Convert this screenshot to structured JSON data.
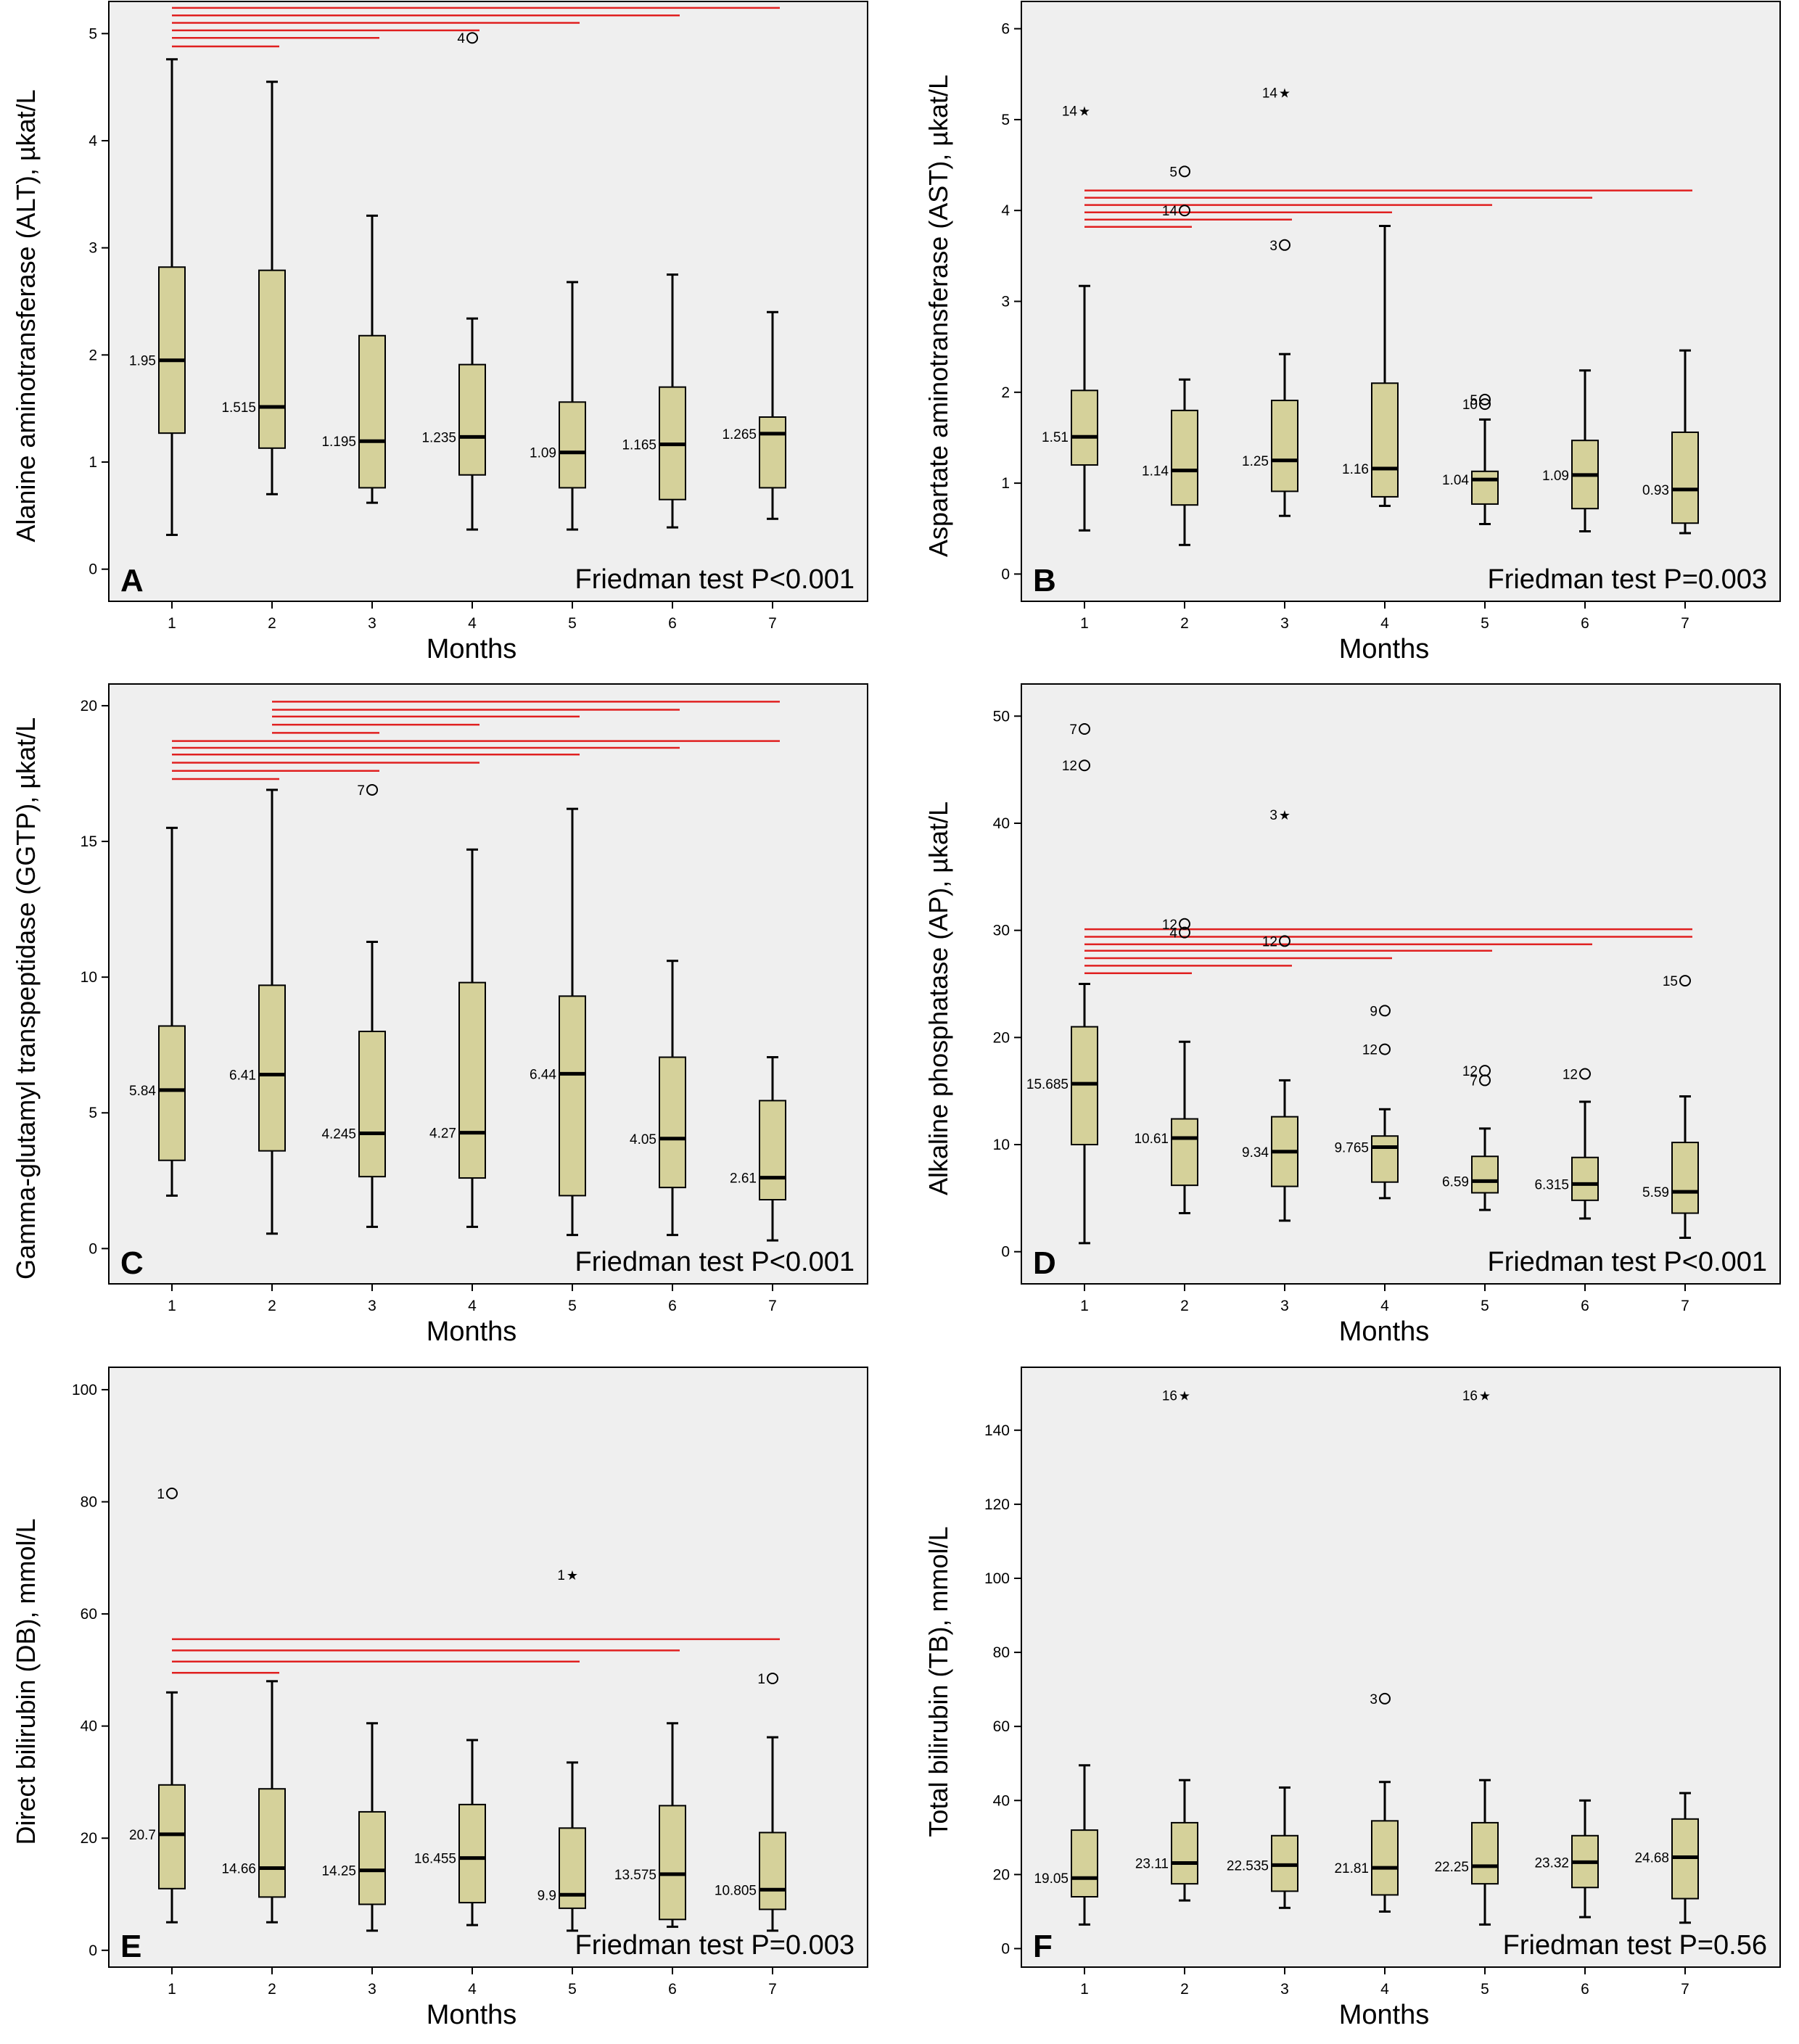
{
  "colors": {
    "plot_bg": "#efefef",
    "box_fill": "#d5d19a",
    "box_stroke": "#000000",
    "significance_line": "#e02020"
  },
  "chart_data": [
    {
      "panel": "A",
      "type": "boxplot",
      "ylabel": "Alanine aminotransferase (ALT), µkat/L",
      "xlabel": "Months",
      "test_text": "Friedman test P<0.001",
      "categories": [
        "1",
        "2",
        "3",
        "4",
        "5",
        "6",
        "7"
      ],
      "ylim": [
        -0.3,
        5.3
      ],
      "yticks": [
        0,
        1,
        2,
        3,
        4,
        5
      ],
      "boxes": [
        {
          "min": 0.32,
          "q1": 1.27,
          "median": 1.95,
          "q3": 2.82,
          "max": 4.76,
          "label": "1.95"
        },
        {
          "min": 0.7,
          "q1": 1.13,
          "median": 1.515,
          "q3": 2.79,
          "max": 4.55,
          "label": "1.515"
        },
        {
          "min": 0.62,
          "q1": 0.76,
          "median": 1.195,
          "q3": 2.18,
          "max": 3.3,
          "label": "1.195"
        },
        {
          "min": 0.37,
          "q1": 0.88,
          "median": 1.235,
          "q3": 1.91,
          "max": 2.34,
          "label": "1.235"
        },
        {
          "min": 0.37,
          "q1": 0.76,
          "median": 1.09,
          "q3": 1.56,
          "max": 2.68,
          "label": "1.09"
        },
        {
          "min": 0.39,
          "q1": 0.65,
          "median": 1.165,
          "q3": 1.7,
          "max": 2.75,
          "label": "1.165"
        },
        {
          "min": 0.47,
          "q1": 0.76,
          "median": 1.265,
          "q3": 1.42,
          "max": 2.4,
          "label": "1.265"
        }
      ],
      "outliers": [
        {
          "x": 4,
          "y": 4.96,
          "label": "4",
          "marker": "circle"
        }
      ],
      "sig_lines": [
        {
          "from": 1,
          "to": 2,
          "y": 4.88
        },
        {
          "from": 1,
          "to": 3,
          "y": 4.96
        },
        {
          "from": 1,
          "to": 4,
          "y": 5.03
        },
        {
          "from": 1,
          "to": 5,
          "y": 5.1
        },
        {
          "from": 1,
          "to": 6,
          "y": 5.17
        },
        {
          "from": 1,
          "to": 7,
          "y": 5.24
        }
      ]
    },
    {
      "panel": "B",
      "type": "boxplot",
      "ylabel": "Aspartate aminotransferase (AST), µkat/L",
      "xlabel": "Months",
      "test_text": "Friedman test P=0.003",
      "categories": [
        "1",
        "2",
        "3",
        "4",
        "5",
        "6",
        "7"
      ],
      "ylim": [
        -0.3,
        6.3
      ],
      "yticks": [
        0,
        1,
        2,
        3,
        4,
        5,
        6
      ],
      "boxes": [
        {
          "min": 0.48,
          "q1": 1.2,
          "median": 1.51,
          "q3": 2.02,
          "max": 3.17,
          "label": "1.51"
        },
        {
          "min": 0.32,
          "q1": 0.76,
          "median": 1.14,
          "q3": 1.8,
          "max": 2.14,
          "label": "1.14"
        },
        {
          "min": 0.64,
          "q1": 0.91,
          "median": 1.25,
          "q3": 1.91,
          "max": 2.42,
          "label": "1.25"
        },
        {
          "min": 0.75,
          "q1": 0.85,
          "median": 1.16,
          "q3": 2.1,
          "max": 3.83,
          "label": "1.16"
        },
        {
          "min": 0.55,
          "q1": 0.77,
          "median": 1.04,
          "q3": 1.13,
          "max": 1.7,
          "label": "1.04"
        },
        {
          "min": 0.47,
          "q1": 0.72,
          "median": 1.09,
          "q3": 1.47,
          "max": 2.24,
          "label": "1.09"
        },
        {
          "min": 0.45,
          "q1": 0.56,
          "median": 0.93,
          "q3": 1.56,
          "max": 2.46,
          "label": "0.93"
        }
      ],
      "outliers": [
        {
          "x": 1,
          "y": 5.1,
          "label": "14",
          "marker": "star"
        },
        {
          "x": 2,
          "y": 4.43,
          "label": "5",
          "marker": "circle"
        },
        {
          "x": 2,
          "y": 4.0,
          "label": "14",
          "marker": "circle"
        },
        {
          "x": 3,
          "y": 5.3,
          "label": "14",
          "marker": "star"
        },
        {
          "x": 3,
          "y": 3.62,
          "label": "3",
          "marker": "circle"
        },
        {
          "x": 5,
          "y": 1.92,
          "label": "5",
          "marker": "circle"
        },
        {
          "x": 5,
          "y": 1.87,
          "label": "10",
          "marker": "circle"
        }
      ],
      "sig_lines": [
        {
          "from": 1,
          "to": 2,
          "y": 3.82
        },
        {
          "from": 1,
          "to": 3,
          "y": 3.9
        },
        {
          "from": 1,
          "to": 4,
          "y": 3.98
        },
        {
          "from": 1,
          "to": 5,
          "y": 4.06
        },
        {
          "from": 1,
          "to": 6,
          "y": 4.14
        },
        {
          "from": 1,
          "to": 7,
          "y": 4.22
        }
      ]
    },
    {
      "panel": "C",
      "type": "boxplot",
      "ylabel": "Gamma-glutamyl transpeptidase (GGTP), µkat/L",
      "xlabel": "Months",
      "test_text": "Friedman test P<0.001",
      "categories": [
        "1",
        "2",
        "3",
        "4",
        "5",
        "6",
        "7"
      ],
      "ylim": [
        -1.3,
        20.8
      ],
      "yticks": [
        0,
        5,
        10,
        15,
        20
      ],
      "boxes": [
        {
          "min": 1.95,
          "q1": 3.25,
          "median": 5.84,
          "q3": 8.2,
          "max": 15.5,
          "label": "5.84"
        },
        {
          "min": 0.55,
          "q1": 3.6,
          "median": 6.41,
          "q3": 9.7,
          "max": 16.9,
          "label": "6.41"
        },
        {
          "min": 0.8,
          "q1": 2.65,
          "median": 4.245,
          "q3": 8.0,
          "max": 11.3,
          "label": "4.245"
        },
        {
          "min": 0.8,
          "q1": 2.6,
          "median": 4.27,
          "q3": 9.8,
          "max": 14.7,
          "label": "4.27"
        },
        {
          "min": 0.5,
          "q1": 1.95,
          "median": 6.44,
          "q3": 9.3,
          "max": 16.2,
          "label": "6.44"
        },
        {
          "min": 0.5,
          "q1": 2.25,
          "median": 4.05,
          "q3": 7.05,
          "max": 10.6,
          "label": "4.05"
        },
        {
          "min": 0.3,
          "q1": 1.8,
          "median": 2.61,
          "q3": 5.45,
          "max": 7.05,
          "label": "2.61"
        }
      ],
      "outliers": [
        {
          "x": 3,
          "y": 16.9,
          "label": "7",
          "marker": "circle"
        }
      ],
      "sig_lines": [
        {
          "from": 1,
          "to": 2,
          "y": 17.3
        },
        {
          "from": 1,
          "to": 3,
          "y": 17.6
        },
        {
          "from": 1,
          "to": 4,
          "y": 17.9
        },
        {
          "from": 1,
          "to": 5,
          "y": 18.2
        },
        {
          "from": 1,
          "to": 6,
          "y": 18.45
        },
        {
          "from": 1,
          "to": 7,
          "y": 18.7
        },
        {
          "from": 2,
          "to": 3,
          "y": 19.0
        },
        {
          "from": 2,
          "to": 4,
          "y": 19.3
        },
        {
          "from": 2,
          "to": 5,
          "y": 19.6
        },
        {
          "from": 2,
          "to": 6,
          "y": 19.85
        },
        {
          "from": 2,
          "to": 7,
          "y": 20.15
        }
      ]
    },
    {
      "panel": "D",
      "type": "boxplot",
      "ylabel": "Alkaline phosphatase (AP), µkat/L",
      "xlabel": "Months",
      "test_text": "Friedman test P<0.001",
      "categories": [
        "1",
        "2",
        "3",
        "4",
        "5",
        "6",
        "7"
      ],
      "ylim": [
        -3,
        53
      ],
      "yticks": [
        0,
        10,
        20,
        30,
        40,
        50
      ],
      "boxes": [
        {
          "min": 0.8,
          "q1": 10.0,
          "median": 15.685,
          "q3": 21.0,
          "max": 25.0,
          "label": "15.685"
        },
        {
          "min": 3.6,
          "q1": 6.2,
          "median": 10.61,
          "q3": 12.4,
          "max": 19.6,
          "label": "10.61"
        },
        {
          "min": 2.9,
          "q1": 6.1,
          "median": 9.34,
          "q3": 12.6,
          "max": 16.0,
          "label": "9.34"
        },
        {
          "min": 5.0,
          "q1": 6.5,
          "median": 9.765,
          "q3": 10.8,
          "max": 13.3,
          "label": "9.765"
        },
        {
          "min": 3.9,
          "q1": 5.5,
          "median": 6.59,
          "q3": 8.9,
          "max": 11.5,
          "label": "6.59"
        },
        {
          "min": 3.1,
          "q1": 4.8,
          "median": 6.315,
          "q3": 8.8,
          "max": 14.0,
          "label": "6.315"
        },
        {
          "min": 1.3,
          "q1": 3.6,
          "median": 5.59,
          "q3": 10.2,
          "max": 14.5,
          "label": "5.59"
        }
      ],
      "outliers": [
        {
          "x": 1,
          "y": 48.8,
          "label": "7",
          "marker": "circle"
        },
        {
          "x": 1,
          "y": 45.4,
          "label": "12",
          "marker": "circle"
        },
        {
          "x": 2,
          "y": 30.6,
          "label": "12",
          "marker": "circle"
        },
        {
          "x": 2,
          "y": 29.8,
          "label": "4",
          "marker": "circle"
        },
        {
          "x": 3,
          "y": 40.8,
          "label": "3",
          "marker": "star"
        },
        {
          "x": 3,
          "y": 29.0,
          "label": "12",
          "marker": "circle"
        },
        {
          "x": 4,
          "y": 22.5,
          "label": "9",
          "marker": "circle"
        },
        {
          "x": 4,
          "y": 18.9,
          "label": "12",
          "marker": "circle"
        },
        {
          "x": 5,
          "y": 16.9,
          "label": "12",
          "marker": "circle"
        },
        {
          "x": 5,
          "y": 16.0,
          "label": "7",
          "marker": "circle"
        },
        {
          "x": 6,
          "y": 16.6,
          "label": "12",
          "marker": "circle"
        },
        {
          "x": 7,
          "y": 25.3,
          "label": "15",
          "marker": "circle"
        }
      ],
      "sig_lines": [
        {
          "from": 1,
          "to": 2,
          "y": 26.0
        },
        {
          "from": 1,
          "to": 3,
          "y": 26.7
        },
        {
          "from": 1,
          "to": 4,
          "y": 27.4
        },
        {
          "from": 1,
          "to": 5,
          "y": 28.1
        },
        {
          "from": 1,
          "to": 6,
          "y": 28.7
        },
        {
          "from": 1,
          "to": 7,
          "y": 29.4
        },
        {
          "from": 1,
          "to": 7,
          "y": 30.1
        }
      ]
    },
    {
      "panel": "E",
      "type": "boxplot",
      "ylabel": "Direct bilirubin (DB), mmol/L",
      "xlabel": "Months",
      "test_text": "Friedman test P=0.003",
      "categories": [
        "1",
        "2",
        "3",
        "4",
        "5",
        "6",
        "7"
      ],
      "ylim": [
        -3,
        104
      ],
      "yticks": [
        0,
        20,
        40,
        60,
        80,
        100
      ],
      "boxes": [
        {
          "min": 5.0,
          "q1": 11.0,
          "median": 20.7,
          "q3": 29.5,
          "max": 46.0,
          "label": "20.7"
        },
        {
          "min": 5.0,
          "q1": 9.5,
          "median": 14.66,
          "q3": 28.8,
          "max": 48.0,
          "label": "14.66"
        },
        {
          "min": 3.5,
          "q1": 8.2,
          "median": 14.25,
          "q3": 24.7,
          "max": 40.5,
          "label": "14.25"
        },
        {
          "min": 4.5,
          "q1": 8.5,
          "median": 16.455,
          "q3": 26.0,
          "max": 37.5,
          "label": "16.455"
        },
        {
          "min": 3.5,
          "q1": 7.5,
          "median": 9.9,
          "q3": 21.8,
          "max": 33.5,
          "label": "9.9"
        },
        {
          "min": 4.2,
          "q1": 5.5,
          "median": 13.575,
          "q3": 25.8,
          "max": 40.5,
          "label": "13.575"
        },
        {
          "min": 3.5,
          "q1": 7.3,
          "median": 10.805,
          "q3": 21.0,
          "max": 38.0,
          "label": "10.805"
        }
      ],
      "outliers": [
        {
          "x": 1,
          "y": 81.5,
          "label": "1",
          "marker": "circle"
        },
        {
          "x": 5,
          "y": 67.0,
          "label": "1",
          "marker": "star"
        },
        {
          "x": 7,
          "y": 48.5,
          "label": "1",
          "marker": "circle"
        }
      ],
      "sig_lines": [
        {
          "from": 1,
          "to": 2,
          "y": 49.5
        },
        {
          "from": 1,
          "to": 5,
          "y": 51.5
        },
        {
          "from": 1,
          "to": 6,
          "y": 53.5
        },
        {
          "from": 1,
          "to": 7,
          "y": 55.5
        }
      ]
    },
    {
      "panel": "F",
      "type": "boxplot",
      "ylabel": "Total bilirubin (TB), mmol/L",
      "xlabel": "Months",
      "test_text": "Friedman test P=0.56",
      "categories": [
        "1",
        "2",
        "3",
        "4",
        "5",
        "6",
        "7"
      ],
      "ylim": [
        -5,
        157
      ],
      "yticks": [
        0,
        20,
        40,
        60,
        80,
        100,
        120,
        140
      ],
      "boxes": [
        {
          "min": 6.5,
          "q1": 14.0,
          "median": 19.05,
          "q3": 32.0,
          "max": 49.5,
          "label": "19.05"
        },
        {
          "min": 13.0,
          "q1": 17.5,
          "median": 23.11,
          "q3": 34.0,
          "max": 45.5,
          "label": "23.11"
        },
        {
          "min": 11.0,
          "q1": 15.5,
          "median": 22.535,
          "q3": 30.5,
          "max": 43.5,
          "label": "22.535"
        },
        {
          "min": 10.0,
          "q1": 14.5,
          "median": 21.81,
          "q3": 34.5,
          "max": 45.0,
          "label": "21.81"
        },
        {
          "min": 6.5,
          "q1": 17.5,
          "median": 22.25,
          "q3": 34.0,
          "max": 45.5,
          "label": "22.25"
        },
        {
          "min": 8.5,
          "q1": 16.5,
          "median": 23.32,
          "q3": 30.5,
          "max": 40.0,
          "label": "23.32"
        },
        {
          "min": 7.0,
          "q1": 13.5,
          "median": 24.68,
          "q3": 35.0,
          "max": 42.0,
          "label": "24.68"
        }
      ],
      "outliers": [
        {
          "x": 2,
          "y": 149.5,
          "label": "16",
          "marker": "star"
        },
        {
          "x": 4,
          "y": 67.5,
          "label": "3",
          "marker": "circle"
        },
        {
          "x": 5,
          "y": 149.5,
          "label": "16",
          "marker": "star"
        }
      ],
      "sig_lines": []
    }
  ]
}
